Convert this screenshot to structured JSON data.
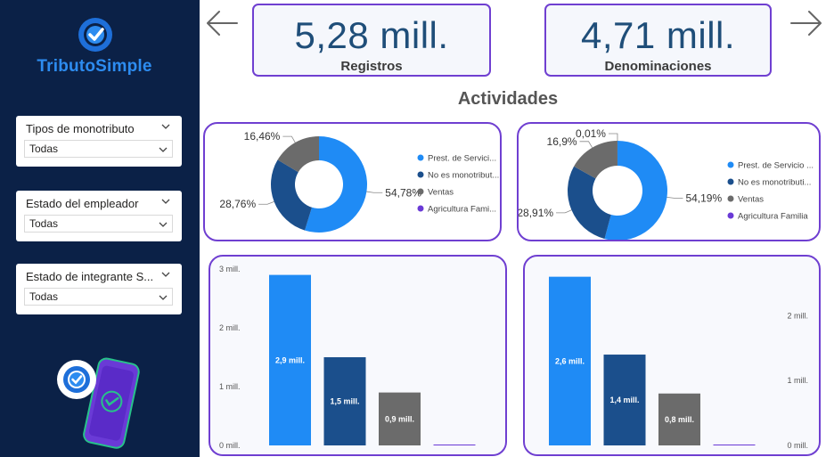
{
  "brand": {
    "name_part1": "Tributo",
    "name_part2": "Simple"
  },
  "filters": [
    {
      "title": "Tipos de monotributo",
      "value": "Todas"
    },
    {
      "title": "Estado del empleador",
      "value": "Todas"
    },
    {
      "title": "Estado de integrante S...",
      "value": "Todas"
    }
  ],
  "kpis": [
    {
      "value": "5,28 mill.",
      "label": "Registros"
    },
    {
      "value": "4,71 mill.",
      "label": "Denominaciones"
    }
  ],
  "section_title": "Actividades",
  "colors": {
    "sidebar": "#0b2147",
    "accent": "#6f3fd1",
    "kpi_text": "#1f4e79",
    "series": [
      "#1f8bf5",
      "#1b4f8c",
      "#6b6b6b",
      "#6a3ad6"
    ]
  },
  "chart_data": [
    {
      "type": "pie",
      "donut": true,
      "labels": [
        "Prest. de Servici...",
        "No es monotribut...",
        "Ventas",
        "Agricultura Fami..."
      ],
      "values": [
        54.78,
        28.76,
        16.46,
        0.0
      ],
      "value_labels": [
        "54,78%",
        "28,76%",
        "16,46%",
        ""
      ],
      "legend_position": "right"
    },
    {
      "type": "pie",
      "donut": true,
      "labels": [
        "Prest. de Servicio ...",
        "No es monotributi...",
        "Ventas",
        "Agricultura Familia"
      ],
      "values": [
        54.19,
        28.91,
        16.9,
        0.01
      ],
      "value_labels": [
        "54,19%",
        "28,91%",
        "16,9%",
        "0,01%"
      ],
      "legend_position": "right"
    },
    {
      "type": "bar",
      "categories": [
        "Prest. de Servicios",
        "No es monotributista",
        "Ventas",
        "Agricultura Familiar"
      ],
      "values": [
        2.9,
        1.5,
        0.9,
        0.01
      ],
      "data_labels": [
        "2,9 mill.",
        "1,5 mill.",
        "0,9 mill.",
        ""
      ],
      "ylim": [
        0,
        3.0
      ],
      "y_ticks": [
        0,
        1,
        2,
        3
      ],
      "y_tick_labels": [
        "0 mill.",
        "1 mill.",
        "2 mill.",
        "3 mill."
      ],
      "y_axis_side": "left",
      "grid": false
    },
    {
      "type": "bar",
      "categories": [
        "Prest. de Servicios",
        "No es monotributista",
        "Ventas",
        "Agricultura Familiar"
      ],
      "values": [
        2.6,
        1.4,
        0.8,
        0.01
      ],
      "data_labels": [
        "2,6 mill.",
        "1,4 mill.",
        "0,8 mill.",
        ""
      ],
      "ylim": [
        0,
        2.65
      ],
      "y_ticks": [
        0,
        1,
        2
      ],
      "y_tick_labels": [
        "0 mill.",
        "1 mill.",
        "2 mill."
      ],
      "y_axis_side": "right",
      "grid": false
    }
  ]
}
